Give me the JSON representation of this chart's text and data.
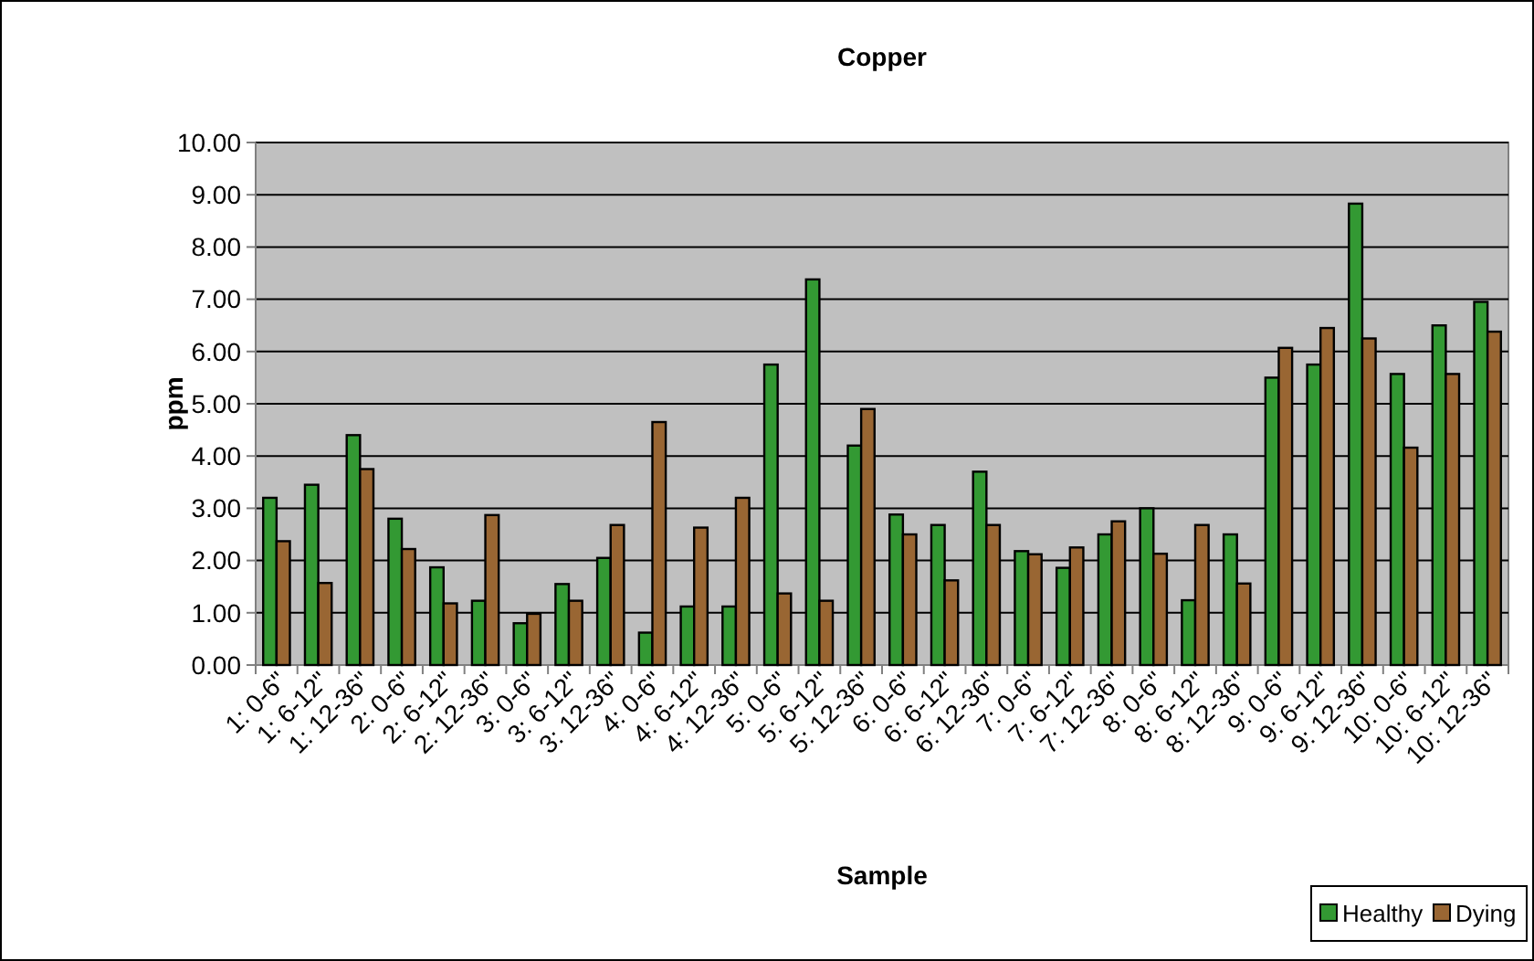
{
  "chart_data": {
    "type": "bar",
    "title": "Copper",
    "xlabel": "Sample",
    "ylabel": "ppm",
    "categories": [
      "1: 0-6\"",
      "1: 6-12\"",
      "1: 12-36\"",
      "2: 0-6\"",
      "2: 6-12\"",
      "2: 12-36\"",
      "3: 0-6\"",
      "3: 6-12\"",
      "3: 12-36\"",
      "4: 0-6\"",
      "4: 6-12\"",
      "4: 12-36\"",
      "5: 0-6\"",
      "5: 6-12\"",
      "5: 12-36\"",
      "6: 0-6\"",
      "6: 6-12\"",
      "6: 12-36\"",
      "7: 0-6\"",
      "7: 6-12\"",
      "7: 12-36\"",
      "8: 0-6\"",
      "8: 6-12\"",
      "8: 12-36\"",
      "9: 0-6\"",
      "9: 6-12\"",
      "9: 12-36\"",
      "10: 0-6\"",
      "10: 6-12\"",
      "10: 12-36\""
    ],
    "series": [
      {
        "name": "Healthy",
        "color": "#339933",
        "values": [
          3.2,
          3.45,
          4.4,
          2.8,
          1.87,
          1.23,
          0.8,
          1.55,
          2.05,
          0.62,
          1.12,
          1.12,
          5.75,
          7.38,
          4.2,
          2.88,
          2.68,
          3.7,
          2.18,
          1.86,
          2.5,
          3.0,
          1.24,
          2.5,
          5.5,
          5.75,
          8.83,
          5.57,
          6.5,
          6.95
        ]
      },
      {
        "name": "Dying",
        "color": "#996633",
        "values": [
          2.37,
          1.57,
          3.75,
          2.22,
          1.18,
          2.87,
          0.98,
          1.23,
          2.68,
          4.65,
          2.63,
          3.2,
          1.37,
          1.23,
          4.9,
          2.5,
          1.62,
          2.68,
          2.12,
          2.25,
          2.75,
          2.13,
          2.68,
          1.56,
          6.07,
          6.45,
          6.25,
          4.16,
          5.57,
          6.38
        ]
      }
    ],
    "ylim": [
      0,
      10
    ],
    "yticks": [
      {
        "value": 0,
        "label": "0.00"
      },
      {
        "value": 1,
        "label": "1.00"
      },
      {
        "value": 2,
        "label": "2.00"
      },
      {
        "value": 3,
        "label": "3.00"
      },
      {
        "value": 4,
        "label": "4.00"
      },
      {
        "value": 5,
        "label": "5.00"
      },
      {
        "value": 6,
        "label": "6.00"
      },
      {
        "value": 7,
        "label": "7.00"
      },
      {
        "value": 8,
        "label": "8.00"
      },
      {
        "value": 9,
        "label": "9.00"
      },
      {
        "value": 10,
        "label": "10.00"
      }
    ],
    "grid": "y",
    "legend": "bottom right"
  }
}
